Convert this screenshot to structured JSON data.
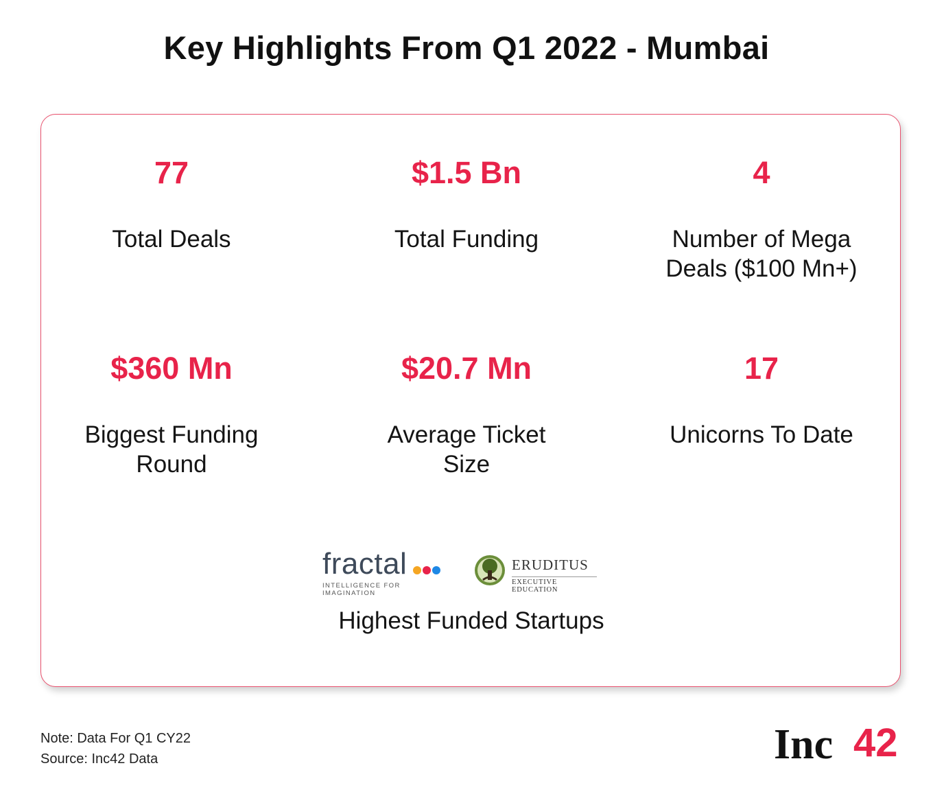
{
  "title": "Key Highlights From Q1 2022 - Mumbai",
  "stats": [
    {
      "value": "77",
      "label_lines": [
        "Total Deals"
      ]
    },
    {
      "value": "$1.5 Bn",
      "label_lines": [
        "Total Funding"
      ]
    },
    {
      "value": "4",
      "label_lines": [
        "Number of Mega",
        "Deals ($100 Mn+)"
      ]
    },
    {
      "value": "$360 Mn",
      "label_lines": [
        "Biggest Funding",
        "Round"
      ]
    },
    {
      "value": "$20.7 Mn",
      "label_lines": [
        "Average Ticket",
        "Size"
      ]
    },
    {
      "value": "17",
      "label_lines": [
        "Unicorns To Date"
      ]
    }
  ],
  "logos": {
    "fractal": {
      "word": "fractal",
      "tagline": "INTELLIGENCE FOR IMAGINATION"
    },
    "eruditus": {
      "name": "ERUDITUS",
      "sub": "EXECUTIVE EDUCATION"
    }
  },
  "highest_label": "Highest Funded Startups",
  "footer": {
    "note": "Note: Data For Q1 CY22",
    "source": "Source: Inc42 Data"
  },
  "brand": {
    "prefix": "Inc",
    "suffix": "42"
  },
  "colors": {
    "accent": "#e8234a",
    "border": "#e8506d",
    "text": "#111111"
  }
}
